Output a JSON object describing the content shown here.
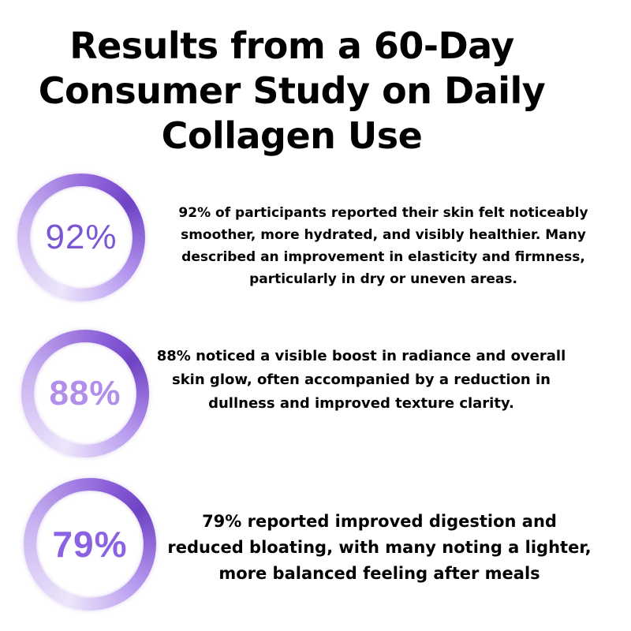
{
  "title": {
    "line1": "Results from a 60-Day",
    "line2": "Consumer Study on Daily",
    "line3": "Collagen Use"
  },
  "stats": [
    {
      "percent_label": "92%",
      "percent_value": 92,
      "description": "92% of participants reported their skin felt noticeably smoother, more hydrated, and visibly healthier. Many described an improvement in elasticity and firmness, particularly in dry or uneven areas."
    },
    {
      "percent_label": "88%",
      "percent_value": 88,
      "description": "88% noticed a visible boost in radiance and overall skin glow, often accompanied by a reduction in dullness and improved texture clarity."
    },
    {
      "percent_label": "79%",
      "percent_value": 79,
      "description": "79% reported improved digestion and reduced bloating, with many noting a lighter, more balanced feeling after meals"
    }
  ],
  "colors": {
    "accent_dark": "#7b56d2",
    "accent_light": "#b18ee9",
    "accent_mid": "#8b62e0"
  }
}
